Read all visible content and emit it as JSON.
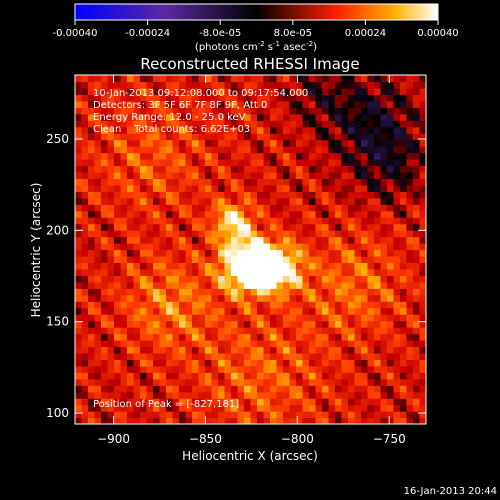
{
  "colorbar": {
    "ticks": [
      {
        "value": -0.0004,
        "label": "-0.00040"
      },
      {
        "value": -0.00024,
        "label": "-0.00024"
      },
      {
        "value": -8e-05,
        "label": "-8.0e-05"
      },
      {
        "value": 8e-05,
        "label": "8.0e-05"
      },
      {
        "value": 0.00024,
        "label": "0.00024"
      },
      {
        "value": 0.0004,
        "label": "0.00040"
      }
    ],
    "range": [
      -0.0004,
      0.0004
    ],
    "units_text": "(photons cm",
    "units_exp1": "-2",
    "units_mid": " s",
    "units_exp2": "-1",
    "units_end": " asec",
    "units_exp3": "-2",
    "units_close": ")",
    "colors": {
      "low": "#0000ff",
      "mid_low": "#5a2a9a",
      "zero": "#000000",
      "mid_high": "#ff2000",
      "high": "#ffffff"
    }
  },
  "annotations": {
    "time_range": "10-Jan-2013 09:12:08.000 to 09:17:54.000",
    "detectors": "Detectors: 3F 5F 6F 7F 8F 9F, Att 0",
    "energy": "Energy Range: 12.0 - 25.0 keV",
    "clean": "Clean    Total counts: 6.62E+03",
    "peak": "Position of Peak = [-827,181]"
  },
  "footer": {
    "timestamp": "16-Jan-2013 20:44"
  },
  "chart_data": {
    "type": "heatmap",
    "title": "Reconstructed RHESSI Image",
    "xlabel": "Heliocentric X (arcsec)",
    "ylabel": "Heliocentric Y (arcsec)",
    "xlim": [
      -921,
      -730
    ],
    "ylim": [
      94,
      285
    ],
    "xticks": [
      {
        "value": -900,
        "label": "−900"
      },
      {
        "value": -850,
        "label": "−850"
      },
      {
        "value": -800,
        "label": "−800"
      },
      {
        "value": -750,
        "label": "−750"
      }
    ],
    "yticks": [
      {
        "value": 100,
        "label": "100"
      },
      {
        "value": 150,
        "label": "150"
      },
      {
        "value": 200,
        "label": "200"
      },
      {
        "value": 250,
        "label": "250"
      }
    ],
    "peak": {
      "x": -827,
      "y": 181,
      "value": 0.0004
    },
    "sources": [
      {
        "x": -827,
        "y": 181,
        "sigma": 10,
        "amp": 0.0004
      },
      {
        "x": -810,
        "y": 180,
        "sigma": 9,
        "amp": 0.00028
      },
      {
        "x": -835,
        "y": 205,
        "sigma": 8,
        "amp": 0.00022
      },
      {
        "x": -870,
        "y": 160,
        "sigma": 18,
        "amp": 0.00012
      },
      {
        "x": -770,
        "y": 170,
        "sigma": 20,
        "amp": 0.0001
      },
      {
        "x": -880,
        "y": 240,
        "sigma": 22,
        "amp": 8e-05
      },
      {
        "x": -820,
        "y": 120,
        "sigma": 24,
        "amp": 9e-05
      },
      {
        "x": -760,
        "y": 260,
        "sigma": 18,
        "amp": -0.00014
      },
      {
        "x": -750,
        "y": 235,
        "sigma": 14,
        "amp": -0.0001
      },
      {
        "x": -790,
        "y": 275,
        "sigma": 12,
        "amp": -8e-05
      }
    ]
  }
}
